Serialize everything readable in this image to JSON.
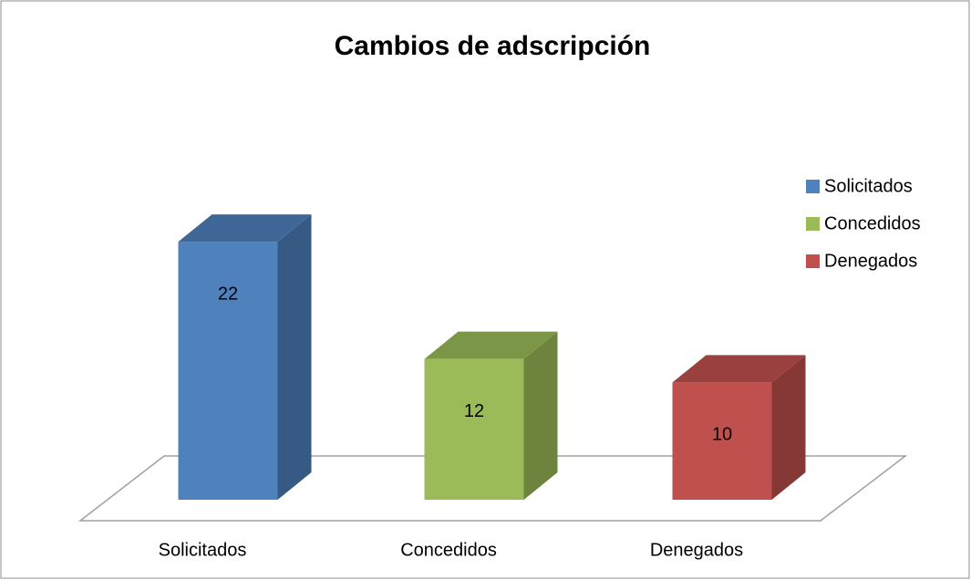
{
  "chart_data": {
    "type": "bar3d",
    "title": "Cambios de adscripción",
    "categories": [
      "Solicitados",
      "Concedidos",
      "Denegados"
    ],
    "values": [
      22,
      12,
      10
    ],
    "colors": [
      "#4f81bd",
      "#9bbb59",
      "#c0504d"
    ],
    "legend": "right"
  }
}
